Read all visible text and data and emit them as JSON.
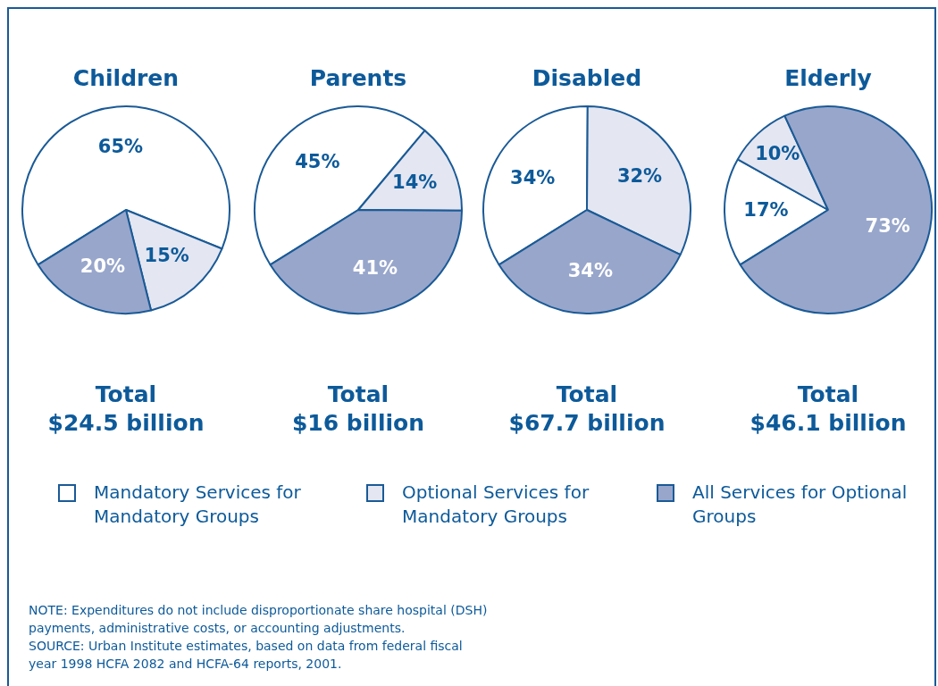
{
  "chart_data": [
    {
      "type": "pie",
      "title": "Children",
      "categories": [
        "Mandatory Services for Mandatory Groups",
        "Optional Services for Mandatory Groups",
        "All Services for Optional Groups"
      ],
      "values": [
        65,
        15,
        20
      ],
      "value_labels": [
        "65%",
        "15%",
        "20%"
      ],
      "colors": [
        "#ffffff",
        "#e4e6f1",
        "#98a6cb"
      ],
      "legend": "bottom",
      "annotations": [
        "Total",
        "$24.5 billion",
        "NOTE: Expenditures do not include disproportionate share hospital (DSH) payments, administrative costs, or accounting adjustments.",
        "SOURCE: Urban Institute estimates, based on data from federal fiscal year 1998 HCFA 2082 and HCFA-64 reports, 2001."
      ]
    },
    {
      "type": "pie",
      "title": "Parents",
      "categories": [
        null,
        null,
        null
      ],
      "values": [
        45,
        14,
        41
      ],
      "value_labels": [
        "45%",
        "14%",
        "41%"
      ],
      "colors": [
        "#ffffff",
        "#e4e6f1",
        "#98a6cb"
      ],
      "annotations": [
        "Total",
        "$16 billion"
      ]
    },
    {
      "type": "pie",
      "title": "Disabled",
      "categories": [
        null,
        null,
        null
      ],
      "values": [
        34,
        32,
        34
      ],
      "value_labels": [
        "34%",
        "32%",
        "34%"
      ],
      "colors": [
        "#ffffff",
        "#e4e6f1",
        "#98a6cb"
      ],
      "annotations": [
        "Total",
        "$67.7 billion"
      ]
    },
    {
      "type": "pie",
      "title": "Elderly",
      "categories": [
        null,
        null,
        null
      ],
      "values": [
        17,
        10,
        73
      ],
      "value_labels": [
        "17%",
        "10%",
        "73%"
      ],
      "colors": [
        "#ffffff",
        "#e4e6f1",
        "#98a6cb"
      ],
      "annotations": [
        "Total",
        "$46.1 billion"
      ]
    }
  ]
}
